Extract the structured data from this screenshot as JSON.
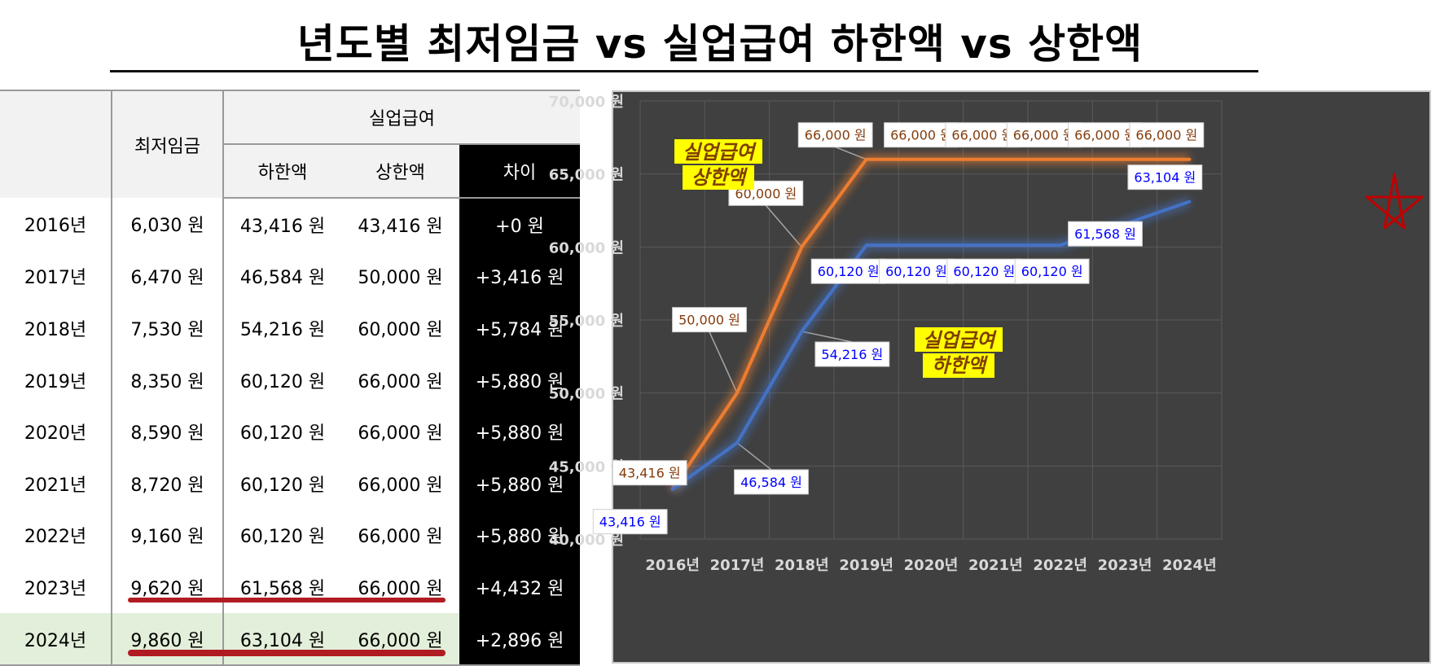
{
  "title": "년도별 최저임금 vs 실업급여 하한액 vs 상한액",
  "table": {
    "headers": {
      "min_wage": "최저임금",
      "unemployment": "실업급여",
      "lower": "하한액",
      "upper": "상한액",
      "diff": "차이"
    },
    "rows": [
      {
        "year": "2016년",
        "min_wage": "6,030 원",
        "lower": "43,416 원",
        "upper": "43,416 원",
        "diff": "+0 원"
      },
      {
        "year": "2017년",
        "min_wage": "6,470 원",
        "lower": "46,584 원",
        "upper": "50,000 원",
        "diff": "+3,416 원"
      },
      {
        "year": "2018년",
        "min_wage": "7,530 원",
        "lower": "54,216 원",
        "upper": "60,000 원",
        "diff": "+5,784 원"
      },
      {
        "year": "2019년",
        "min_wage": "8,350 원",
        "lower": "60,120 원",
        "upper": "66,000 원",
        "diff": "+5,880 원"
      },
      {
        "year": "2020년",
        "min_wage": "8,590 원",
        "lower": "60,120 원",
        "upper": "66,000 원",
        "diff": "+5,880 원"
      },
      {
        "year": "2021년",
        "min_wage": "8,720 원",
        "lower": "60,120 원",
        "upper": "66,000 원",
        "diff": "+5,880 원"
      },
      {
        "year": "2022년",
        "min_wage": "9,160 원",
        "lower": "60,120 원",
        "upper": "66,000 원",
        "diff": "+5,880 원"
      },
      {
        "year": "2023년",
        "min_wage": "9,620 원",
        "lower": "61,568 원",
        "upper": "66,000 원",
        "diff": "+4,432 원"
      },
      {
        "year": "2024년",
        "min_wage": "9,860 원",
        "lower": "63,104 원",
        "upper": "66,000 원",
        "diff": "+2,896 원"
      }
    ],
    "highlight_row_color": "#e2efda",
    "underline_color": "#b01c22"
  },
  "chart_data": {
    "type": "line",
    "categories": [
      "2016년",
      "2017년",
      "2018년",
      "2019년",
      "2020년",
      "2021년",
      "2022년",
      "2023년",
      "2024년"
    ],
    "ylim": [
      40000,
      70000
    ],
    "y_ticks": [
      40000,
      45000,
      50000,
      55000,
      60000,
      65000,
      70000
    ],
    "y_tick_labels": [
      "40,000 원",
      "45,000 원",
      "50,000 원",
      "55,000 원",
      "60,000 원",
      "65,000 원",
      "70,000 원"
    ],
    "grid": true,
    "background": "#404040",
    "series": [
      {
        "name": "실업급여 상한액",
        "color": "#ed7d31",
        "label_color": "#843c0c",
        "values": [
          43416,
          50000,
          60000,
          66000,
          66000,
          66000,
          66000,
          66000,
          66000
        ],
        "data_labels": [
          "43,416 원",
          "50,000 원",
          "60,000 원",
          "66,000 원",
          "66,000 원",
          "66,000 원",
          "66,000 원",
          "66,000 원",
          "66,000 원"
        ]
      },
      {
        "name": "실업급여 하한액",
        "color": "#4472c4",
        "label_color": "#0000ff",
        "values": [
          43416,
          46584,
          54216,
          60120,
          60120,
          60120,
          60120,
          61568,
          63104
        ],
        "data_labels": [
          "43,416 원",
          "46,584 원",
          "54,216 원",
          "60,120 원",
          "60,120 원",
          "60,120 원",
          "60,120 원",
          "61,568 원",
          "63,104 원"
        ]
      }
    ],
    "annotations": [
      {
        "text_line1": "실업급여",
        "text_line2": "상한액",
        "background": "#ffff00",
        "text_color": "#7f3f00"
      },
      {
        "text_line1": "실업급여",
        "text_line2": "하한액",
        "background": "#ffff00",
        "text_color": "#7f3f00"
      }
    ]
  }
}
